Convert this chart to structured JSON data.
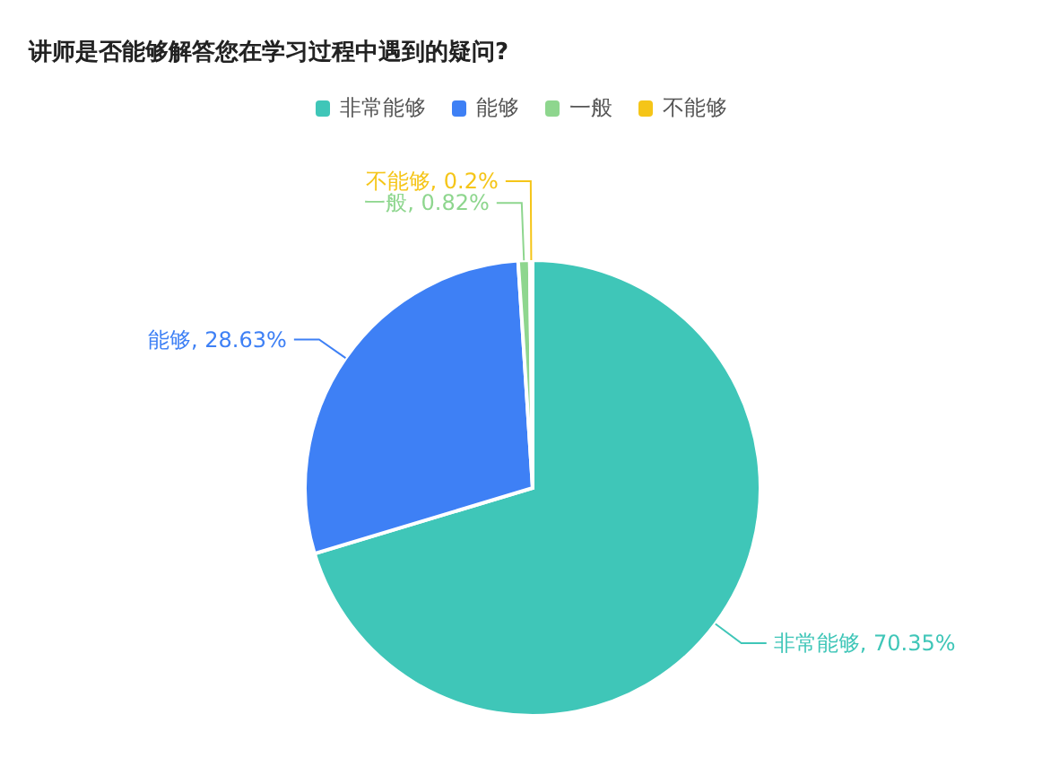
{
  "chart_data": {
    "type": "pie",
    "title": "讲师是否能够解答您在学习过程中遇到的疑问?",
    "categories": [
      "非常能够",
      "能够",
      "一般",
      "不能够"
    ],
    "values": [
      70.35,
      28.63,
      0.82,
      0.2
    ],
    "colors": [
      "#3fc6b8",
      "#3e80f5",
      "#8ed68e",
      "#f5c518"
    ],
    "value_labels": [
      "非常能够, 70.35%",
      "能够, 28.63%",
      "一般, 0.82%",
      "不能够, 0.2%"
    ],
    "legend": "top"
  }
}
